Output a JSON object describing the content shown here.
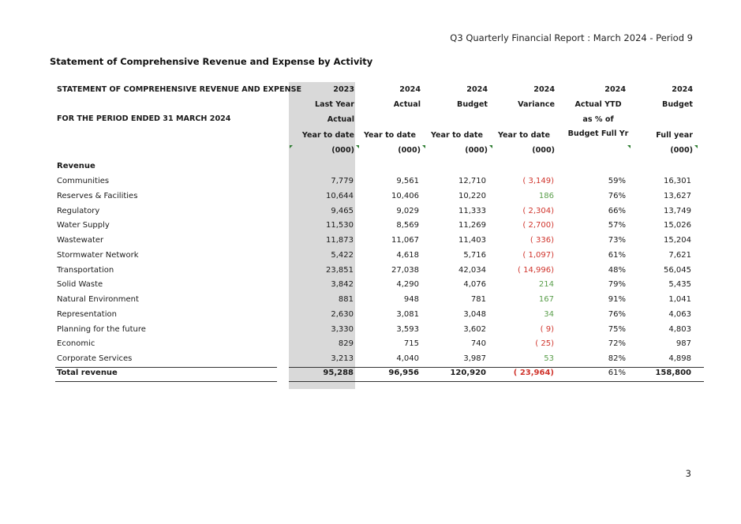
{
  "report_title": "Q3 Quarterly Financial Report : March 2024 - Period 9",
  "section_title": "Statement of Comprehensive Revenue and Expense by Activity",
  "page_number": "3",
  "header": {
    "statement_title": "STATEMENT OF COMPREHENSIVE REVENUE AND EXPENSE",
    "period": "FOR THE PERIOD ENDED 31 MARCH 2024",
    "col_2023": [
      "2023",
      "Last Year",
      "Actual",
      "Year to date",
      "(000)"
    ],
    "col_actual": [
      "2024",
      "Actual",
      "Year to date",
      "(000)"
    ],
    "col_budget": [
      "2024",
      "Budget",
      "Year to date",
      "(000)"
    ],
    "col_variance": [
      "2024",
      "Variance",
      "Year to date",
      "(000)"
    ],
    "col_pct": [
      "2024",
      "Actual YTD",
      "as % of",
      "Budget Full Yr"
    ],
    "col_full": [
      "2024",
      "Budget",
      "Full year",
      "(000)"
    ]
  },
  "revenue_heading": "Revenue",
  "rows": [
    {
      "label": "Communities",
      "y2023": "7,779",
      "actual": "9,561",
      "budget": "12,710",
      "variance": "( 3,149)",
      "pct": "59%",
      "full": "16,301"
    },
    {
      "label": "Reserves & Facilities",
      "y2023": "10,644",
      "actual": "10,406",
      "budget": "10,220",
      "variance": "186",
      "pct": "76%",
      "full": "13,627"
    },
    {
      "label": "Regulatory",
      "y2023": "9,465",
      "actual": "9,029",
      "budget": "11,333",
      "variance": "( 2,304)",
      "pct": "66%",
      "full": "13,749"
    },
    {
      "label": "Water Supply",
      "y2023": "11,530",
      "actual": "8,569",
      "budget": "11,269",
      "variance": "( 2,700)",
      "pct": "57%",
      "full": "15,026"
    },
    {
      "label": "Wastewater",
      "y2023": "11,873",
      "actual": "11,067",
      "budget": "11,403",
      "variance": "( 336)",
      "pct": "73%",
      "full": "15,204"
    },
    {
      "label": "Stormwater Network",
      "y2023": "5,422",
      "actual": "4,618",
      "budget": "5,716",
      "variance": "( 1,097)",
      "pct": "61%",
      "full": "7,621"
    },
    {
      "label": "Transportation",
      "y2023": "23,851",
      "actual": "27,038",
      "budget": "42,034",
      "variance": "( 14,996)",
      "pct": "48%",
      "full": "56,045"
    },
    {
      "label": "Solid Waste",
      "y2023": "3,842",
      "actual": "4,290",
      "budget": "4,076",
      "variance": "214",
      "pct": "79%",
      "full": "5,435"
    },
    {
      "label": "Natural Environment",
      "y2023": "881",
      "actual": "948",
      "budget": "781",
      "variance": "167",
      "pct": "91%",
      "full": "1,041"
    },
    {
      "label": "Representation",
      "y2023": "2,630",
      "actual": "3,081",
      "budget": "3,048",
      "variance": "34",
      "pct": "76%",
      "full": "4,063"
    },
    {
      "label": "Planning for the future",
      "y2023": "3,330",
      "actual": "3,593",
      "budget": "3,602",
      "variance": "( 9)",
      "pct": "75%",
      "full": "4,803"
    },
    {
      "label": "Economic",
      "y2023": "829",
      "actual": "715",
      "budget": "740",
      "variance": "( 25)",
      "pct": "72%",
      "full": "987"
    },
    {
      "label": "Corporate Services",
      "y2023": "3,213",
      "actual": "4,040",
      "budget": "3,987",
      "variance": "53",
      "pct": "82%",
      "full": "4,898"
    }
  ],
  "total": {
    "label": "Total revenue",
    "y2023": "95,288",
    "actual": "96,956",
    "budget": "120,920",
    "variance": "( 23,964)",
    "pct": "61%",
    "full": "158,800"
  },
  "colors": {
    "negative": "#d0342c",
    "positive": "#5a9e4b",
    "shade": "#d9d9d9"
  }
}
